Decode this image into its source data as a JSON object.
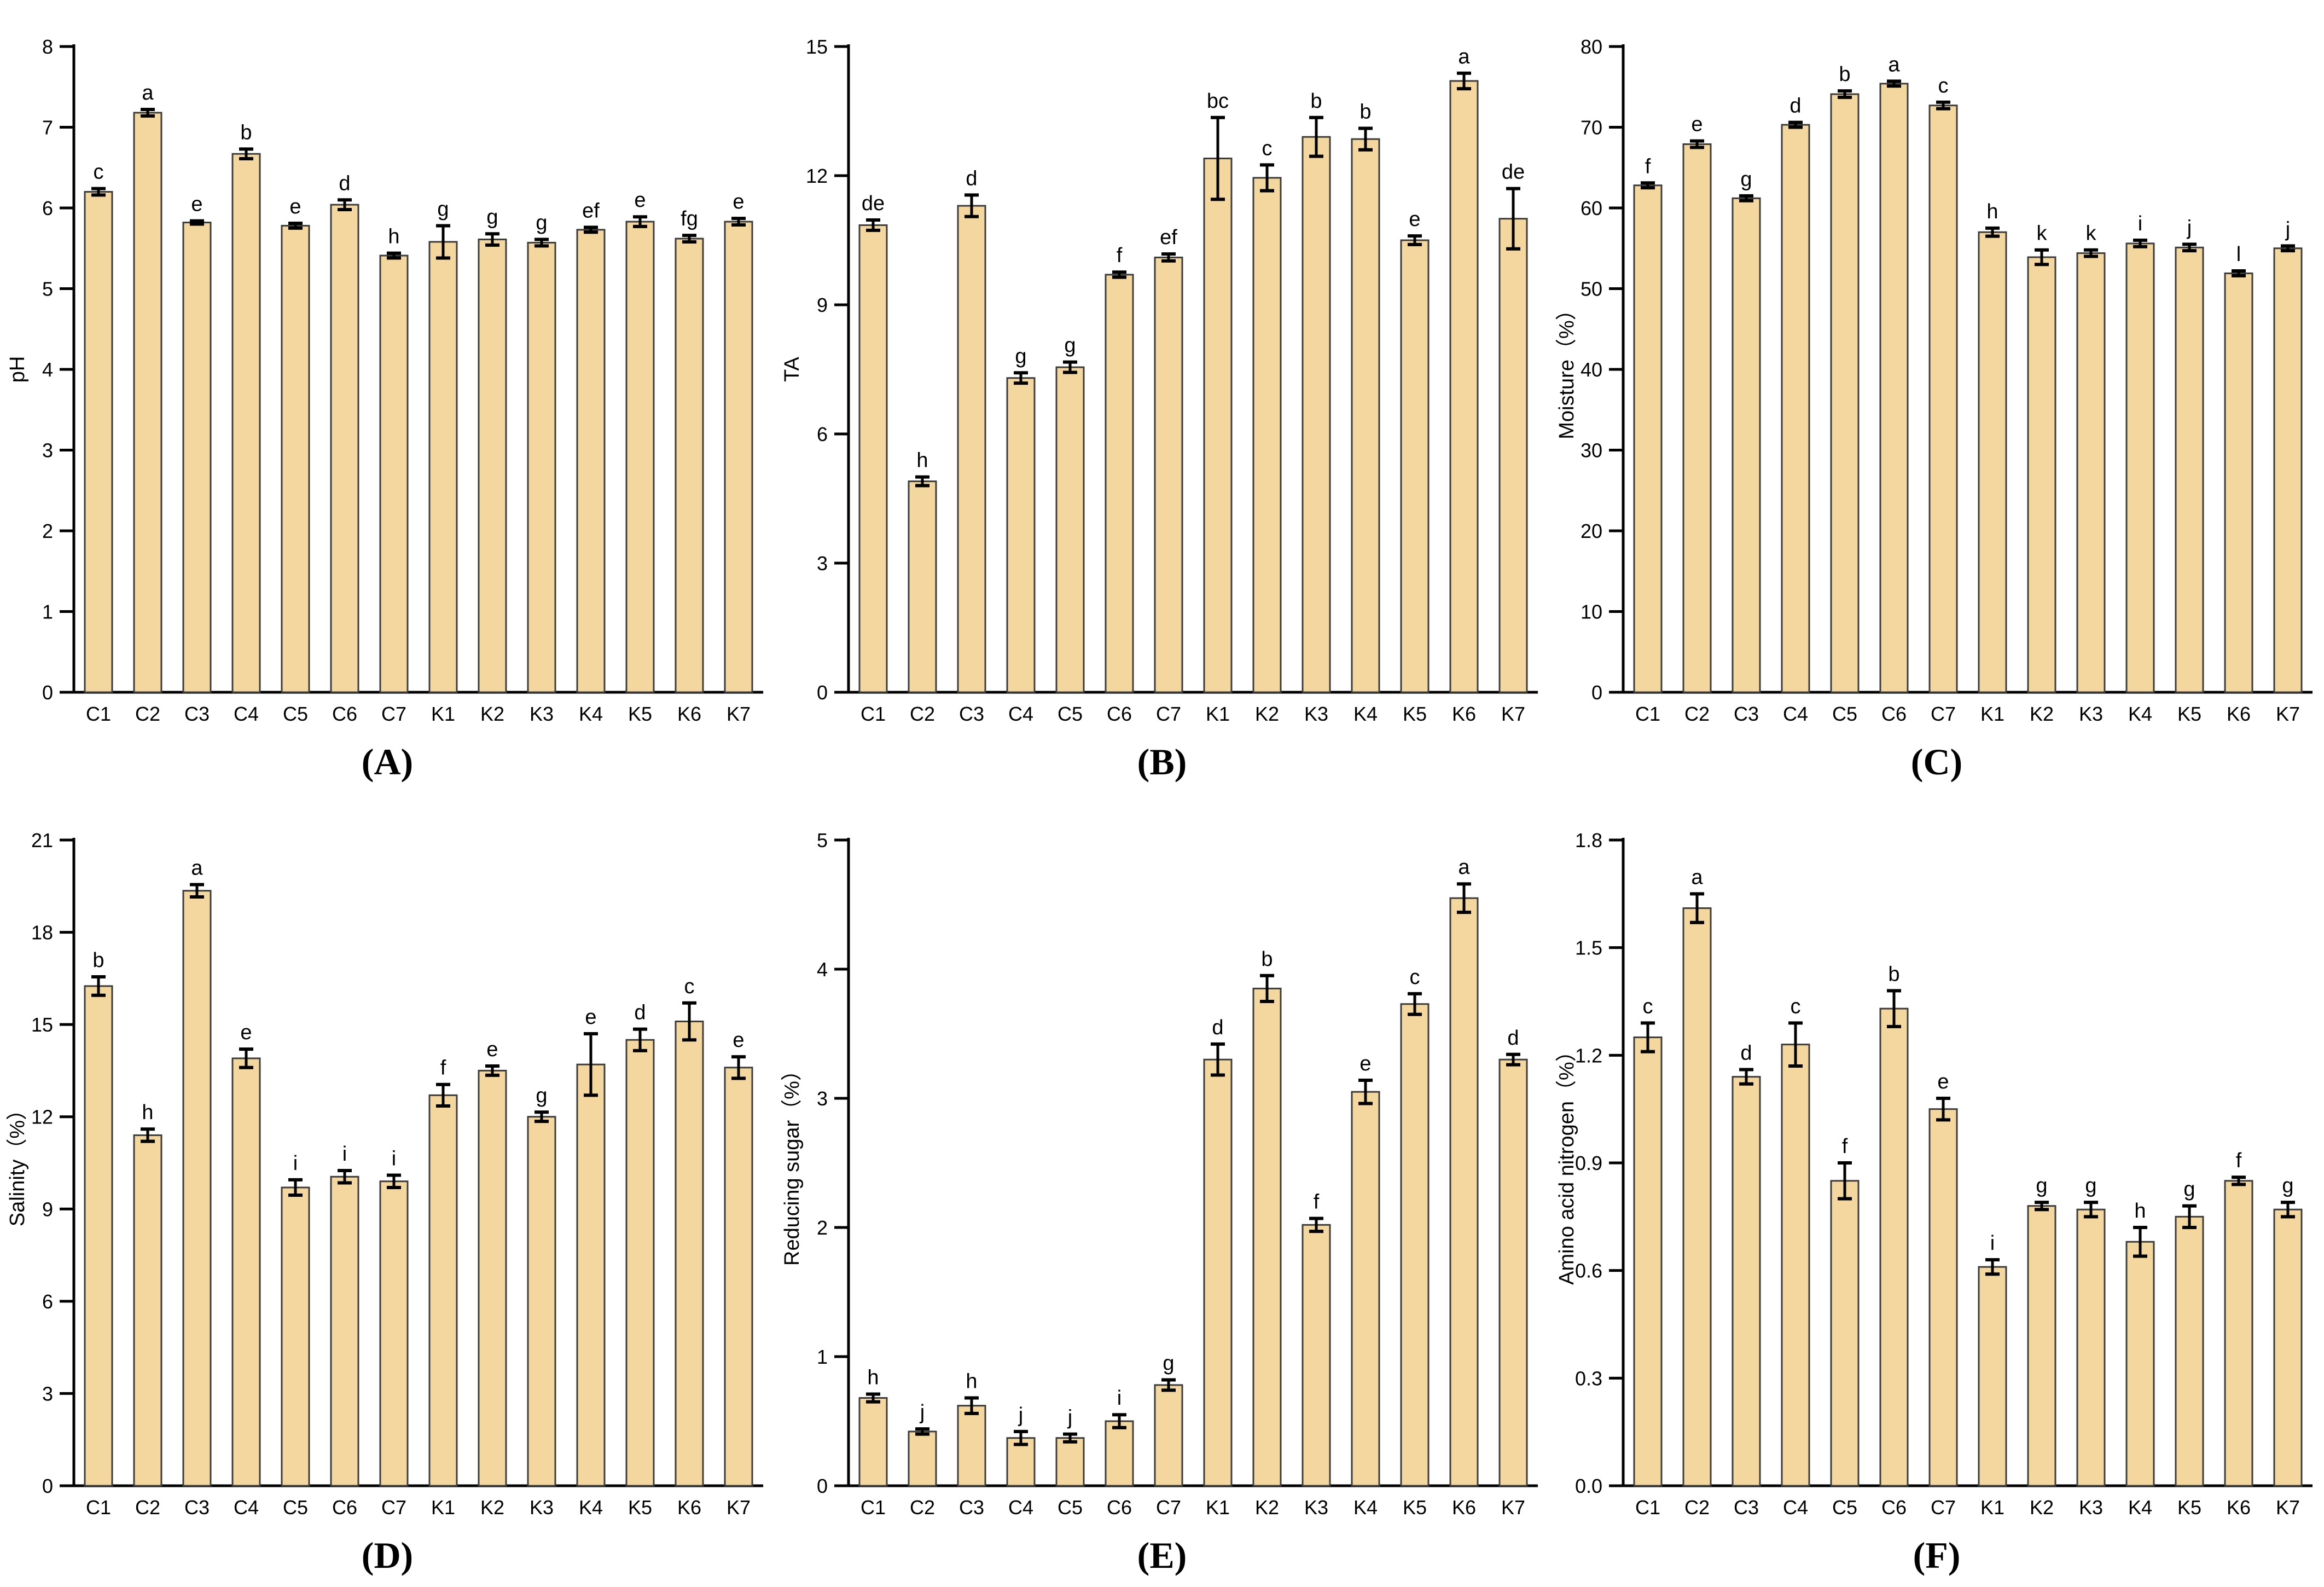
{
  "figure": {
    "background": "#ffffff",
    "bar_fill": "#F4D79E",
    "bar_stroke": "#3C3C3C",
    "error_color": "#000000",
    "axis_color": "#000000",
    "text_color": "#000000"
  },
  "chart_data": [
    {
      "type": "bar",
      "panel_label": "(A)",
      "ylabel": "pH",
      "ylim": [
        0,
        8
      ],
      "yticks": [
        "0",
        "1",
        "2",
        "3",
        "4",
        "5",
        "6",
        "7",
        "8"
      ],
      "legend": "none",
      "grid": false,
      "categories": [
        "C1",
        "C2",
        "C3",
        "C4",
        "C5",
        "C6",
        "C7",
        "K1",
        "K2",
        "K3",
        "K4",
        "K5",
        "K6",
        "K7"
      ],
      "values": [
        6.2,
        7.18,
        5.82,
        6.67,
        5.78,
        6.04,
        5.41,
        5.58,
        5.61,
        5.57,
        5.73,
        5.83,
        5.62,
        5.83
      ],
      "errors": [
        0.04,
        0.04,
        0.02,
        0.06,
        0.03,
        0.06,
        0.03,
        0.2,
        0.07,
        0.04,
        0.03,
        0.06,
        0.04,
        0.04
      ],
      "letters": [
        "c",
        "a",
        "e",
        "b",
        "e",
        "d",
        "h",
        "g",
        "g",
        "g",
        "ef",
        "e",
        "fg",
        "e"
      ]
    },
    {
      "type": "bar",
      "panel_label": "(B)",
      "ylabel": "TA",
      "ylim": [
        0,
        15
      ],
      "yticks": [
        "0",
        "3",
        "6",
        "9",
        "12",
        "15"
      ],
      "legend": "none",
      "grid": false,
      "categories": [
        "C1",
        "C2",
        "C3",
        "C4",
        "C5",
        "C6",
        "C7",
        "K1",
        "K2",
        "K3",
        "K4",
        "K5",
        "K6",
        "K7"
      ],
      "values": [
        10.85,
        4.9,
        11.3,
        7.3,
        7.55,
        9.7,
        10.1,
        12.4,
        11.95,
        12.9,
        12.85,
        10.5,
        14.2,
        11.0
      ],
      "errors": [
        0.12,
        0.1,
        0.25,
        0.12,
        0.12,
        0.06,
        0.08,
        0.95,
        0.3,
        0.45,
        0.25,
        0.1,
        0.18,
        0.7
      ],
      "letters": [
        "de",
        "h",
        "d",
        "g",
        "g",
        "f",
        "ef",
        "bc",
        "c",
        "b",
        "b",
        "e",
        "a",
        "de"
      ]
    },
    {
      "type": "bar",
      "panel_label": "(C)",
      "ylabel": "Moisture（%）",
      "ylim": [
        0,
        80
      ],
      "yticks": [
        "0",
        "10",
        "20",
        "30",
        "40",
        "50",
        "60",
        "70",
        "80"
      ],
      "legend": "none",
      "grid": false,
      "categories": [
        "C1",
        "C2",
        "C3",
        "C4",
        "C5",
        "C6",
        "C7",
        "K1",
        "K2",
        "K3",
        "K4",
        "K5",
        "K6",
        "K7"
      ],
      "values": [
        62.8,
        67.9,
        61.2,
        70.3,
        74.1,
        75.4,
        72.7,
        57.0,
        53.9,
        54.4,
        55.6,
        55.1,
        51.9,
        55.0
      ],
      "errors": [
        0.3,
        0.4,
        0.3,
        0.3,
        0.4,
        0.3,
        0.4,
        0.5,
        0.9,
        0.4,
        0.4,
        0.4,
        0.3,
        0.3
      ],
      "letters": [
        "f",
        "e",
        "g",
        "d",
        "b",
        "a",
        "c",
        "h",
        "k",
        "k",
        "i",
        "j",
        "l",
        "j"
      ]
    },
    {
      "type": "bar",
      "panel_label": "(D)",
      "ylabel": "Salinity（%）",
      "ylim": [
        0,
        21
      ],
      "yticks": [
        "0",
        "3",
        "6",
        "9",
        "12",
        "15",
        "18",
        "21"
      ],
      "legend": "none",
      "grid": false,
      "categories": [
        "C1",
        "C2",
        "C3",
        "C4",
        "C5",
        "C6",
        "C7",
        "K1",
        "K2",
        "K3",
        "K4",
        "K5",
        "K6",
        "K7"
      ],
      "values": [
        16.25,
        11.4,
        19.35,
        13.9,
        9.7,
        10.05,
        9.9,
        12.7,
        13.5,
        12.0,
        13.7,
        14.5,
        15.1,
        13.6
      ],
      "errors": [
        0.3,
        0.2,
        0.2,
        0.3,
        0.25,
        0.2,
        0.2,
        0.35,
        0.15,
        0.15,
        1.0,
        0.35,
        0.6,
        0.35
      ],
      "letters": [
        "b",
        "h",
        "a",
        "e",
        "i",
        "i",
        "i",
        "f",
        "e",
        "g",
        "e",
        "d",
        "c",
        "e"
      ]
    },
    {
      "type": "bar",
      "panel_label": "(E)",
      "ylabel": "Reducing sugar（%）",
      "ylim": [
        0,
        5
      ],
      "yticks": [
        "0",
        "1",
        "2",
        "3",
        "4",
        "5"
      ],
      "legend": "none",
      "grid": false,
      "categories": [
        "C1",
        "C2",
        "C3",
        "C4",
        "C5",
        "C6",
        "C7",
        "K1",
        "K2",
        "K3",
        "K4",
        "K5",
        "K6",
        "K7"
      ],
      "values": [
        0.68,
        0.42,
        0.62,
        0.37,
        0.37,
        0.5,
        0.78,
        3.3,
        3.85,
        2.02,
        3.05,
        3.73,
        4.55,
        3.3
      ],
      "errors": [
        0.03,
        0.02,
        0.06,
        0.05,
        0.03,
        0.05,
        0.04,
        0.12,
        0.1,
        0.05,
        0.09,
        0.08,
        0.11,
        0.04
      ],
      "letters": [
        "h",
        "j",
        "h",
        "j",
        "j",
        "i",
        "g",
        "d",
        "b",
        "f",
        "e",
        "c",
        "a",
        "d"
      ]
    },
    {
      "type": "bar",
      "panel_label": "(F)",
      "ylabel": "Amino acid nitrogen（%）",
      "ylim": [
        0,
        1.8
      ],
      "yticks": [
        "0.0",
        "0.3",
        "0.6",
        "0.9",
        "1.2",
        "1.5",
        "1.8"
      ],
      "legend": "none",
      "grid": false,
      "categories": [
        "C1",
        "C2",
        "C3",
        "C4",
        "C5",
        "C6",
        "C7",
        "K1",
        "K2",
        "K3",
        "K4",
        "K5",
        "K6",
        "K7"
      ],
      "values": [
        1.25,
        1.61,
        1.14,
        1.23,
        0.85,
        1.33,
        1.05,
        0.61,
        0.78,
        0.77,
        0.68,
        0.75,
        0.85,
        0.77
      ],
      "errors": [
        0.04,
        0.04,
        0.02,
        0.06,
        0.05,
        0.05,
        0.03,
        0.02,
        0.01,
        0.02,
        0.04,
        0.03,
        0.01,
        0.02
      ],
      "letters": [
        "c",
        "a",
        "d",
        "c",
        "f",
        "b",
        "e",
        "i",
        "g",
        "g",
        "h",
        "g",
        "f",
        "g"
      ]
    }
  ]
}
